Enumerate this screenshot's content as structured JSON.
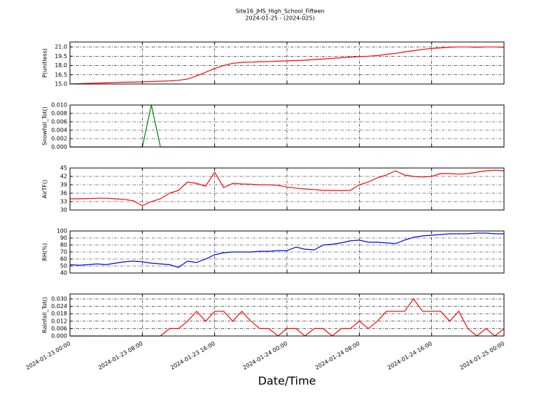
{
  "chart_data": {
    "type": "line",
    "title": "Site16_JHS_High_School_Fifteen",
    "subtitle": "2024-01-25 - (2024-025)",
    "xlabel": "Date/Time",
    "grid": true,
    "xlim": [
      "2024-01-23 00:00",
      "2024-01-25 00:00"
    ],
    "xticks": [
      "2024-01-23 00:00",
      "2024-01-23 08:00",
      "2024-01-23 16:00",
      "2024-01-24 00:00",
      "2024-01-24 08:00",
      "2024-01-24 16:00",
      "2024-01-25 00:00"
    ],
    "x": [
      "2024-01-23 00:00",
      "2024-01-23 01:00",
      "2024-01-23 02:00",
      "2024-01-23 03:00",
      "2024-01-23 04:00",
      "2024-01-23 05:00",
      "2024-01-23 06:00",
      "2024-01-23 07:00",
      "2024-01-23 08:00",
      "2024-01-23 09:00",
      "2024-01-23 10:00",
      "2024-01-23 11:00",
      "2024-01-23 12:00",
      "2024-01-23 13:00",
      "2024-01-23 14:00",
      "2024-01-23 15:00",
      "2024-01-23 16:00",
      "2024-01-23 17:00",
      "2024-01-23 18:00",
      "2024-01-23 19:00",
      "2024-01-23 20:00",
      "2024-01-23 21:00",
      "2024-01-23 22:00",
      "2024-01-23 23:00",
      "2024-01-24 00:00",
      "2024-01-24 01:00",
      "2024-01-24 02:00",
      "2024-01-24 03:00",
      "2024-01-24 04:00",
      "2024-01-24 05:00",
      "2024-01-24 06:00",
      "2024-01-24 07:00",
      "2024-01-24 08:00",
      "2024-01-24 09:00",
      "2024-01-24 10:00",
      "2024-01-24 11:00",
      "2024-01-24 12:00",
      "2024-01-24 13:00",
      "2024-01-24 14:00",
      "2024-01-24 15:00",
      "2024-01-24 16:00",
      "2024-01-24 17:00",
      "2024-01-24 18:00",
      "2024-01-24 19:00",
      "2024-01-24 20:00",
      "2024-01-24 21:00",
      "2024-01-24 22:00",
      "2024-01-24 23:00",
      "2024-01-25 00:00"
    ],
    "panels": [
      {
        "ylabel": "P(unitless)",
        "ylim": [
          15.0,
          21.8
        ],
        "yticks": [
          {
            "value": 15.0,
            "label": "15.0"
          },
          {
            "value": 16.5,
            "label": "16.5"
          },
          {
            "value": 18.0,
            "label": "18.0"
          },
          {
            "value": 19.5,
            "label": "19.5"
          },
          {
            "value": 21.0,
            "label": "21.0"
          }
        ],
        "series": [
          {
            "color": "#ff0000",
            "values": [
              15.0,
              15.05,
              15.1,
              15.15,
              15.2,
              15.25,
              15.3,
              15.3,
              15.35,
              15.4,
              15.45,
              15.5,
              15.6,
              15.8,
              16.3,
              16.9,
              17.5,
              18.0,
              18.35,
              18.5,
              18.55,
              18.6,
              18.65,
              18.7,
              18.75,
              18.8,
              18.85,
              18.95,
              19.05,
              19.15,
              19.25,
              19.35,
              19.45,
              19.5,
              19.6,
              19.8,
              19.95,
              20.2,
              20.4,
              20.6,
              20.75,
              20.85,
              20.95,
              21.0,
              21.0,
              20.95,
              21.0,
              21.0,
              20.95
            ]
          }
        ]
      },
      {
        "ylabel": "Snowfall_Tot()",
        "ylim": [
          0,
          0.01
        ],
        "yticks": [
          {
            "value": 0,
            "label": "0.000"
          },
          {
            "value": 0.002,
            "label": "0.002"
          },
          {
            "value": 0.004,
            "label": "0.004"
          },
          {
            "value": 0.006,
            "label": "0.006"
          },
          {
            "value": 0.008,
            "label": "0.008"
          },
          {
            "value": 0.01,
            "label": "0.010"
          }
        ],
        "series": [
          {
            "color": "#008000",
            "values": [
              0,
              0,
              0,
              0,
              0,
              0,
              0,
              0,
              0,
              0.01,
              0,
              0,
              0,
              0,
              0,
              0,
              0,
              0,
              0,
              0,
              0,
              0,
              0,
              0,
              0,
              0,
              0,
              0,
              0,
              0,
              0,
              0,
              0,
              0,
              0,
              0,
              0,
              0,
              0,
              0,
              0,
              0,
              0,
              0,
              0,
              0,
              0,
              0,
              0
            ]
          }
        ]
      },
      {
        "ylabel": "AirTF()",
        "ylim": [
          30,
          45
        ],
        "yticks": [
          30,
          33,
          36,
          39,
          42,
          45
        ],
        "series": [
          {
            "color": "#ff0000",
            "values": [
              34,
              34,
              34.1,
              34.2,
              34.2,
              34.0,
              33.8,
              33.3,
              31.5,
              33.0,
              34.0,
              36.0,
              37.0,
              40.0,
              39.5,
              38.5,
              43.5,
              38.0,
              39.5,
              39.3,
              39.2,
              39.0,
              39.0,
              38.8,
              38.2,
              37.8,
              37.5,
              37.3,
              37.0,
              37.0,
              36.9,
              37.0,
              39.0,
              40.0,
              41.5,
              42.5,
              44.0,
              42.5,
              42.0,
              41.8,
              42.0,
              43.0,
              43.0,
              42.8,
              43.0,
              43.5,
              44.0,
              44.2,
              44.0
            ]
          }
        ]
      },
      {
        "ylabel": "RH(%)",
        "ylim": [
          40,
          100
        ],
        "yticks": [
          40,
          50,
          60,
          70,
          80,
          90,
          100
        ],
        "series": [
          {
            "color": "#0000ff",
            "values": [
              52,
              51,
              52,
              53,
              52,
              54,
              56,
              57,
              56,
              54,
              53,
              52,
              48,
              57,
              55,
              60,
              66,
              69,
              70,
              70,
              70,
              71,
              71,
              72,
              72,
              77,
              74,
              73,
              80,
              81,
              83,
              86,
              87,
              84,
              84,
              83,
              82,
              87,
              91,
              93,
              94,
              95,
              96,
              96,
              96,
              97,
              97,
              96,
              96
            ]
          }
        ]
      },
      {
        "ylabel": "Rainfall_Tot()",
        "ylim": [
          0,
          0.034
        ],
        "yticks": [
          {
            "value": 0,
            "label": "0.000"
          },
          {
            "value": 0.006,
            "label": "0.006"
          },
          {
            "value": 0.012,
            "label": "0.012"
          },
          {
            "value": 0.018,
            "label": "0.018"
          },
          {
            "value": 0.024,
            "label": "0.024"
          },
          {
            "value": 0.03,
            "label": "0.030"
          }
        ],
        "series": [
          {
            "color": "#ff0000",
            "values": [
              0,
              0,
              0,
              0,
              0,
              0,
              0,
              0,
              0,
              0,
              0,
              0.006,
              0.006,
              0.012,
              0.02,
              0.012,
              0.02,
              0.02,
              0.012,
              0.02,
              0.012,
              0.006,
              0.006,
              0,
              0.006,
              0.006,
              0,
              0.006,
              0.006,
              0,
              0.006,
              0.006,
              0.012,
              0.006,
              0.012,
              0.02,
              0.02,
              0.02,
              0.03,
              0.02,
              0.02,
              0.02,
              0.012,
              0.02,
              0.006,
              0,
              0.006,
              0,
              0.006
            ]
          }
        ]
      }
    ]
  }
}
